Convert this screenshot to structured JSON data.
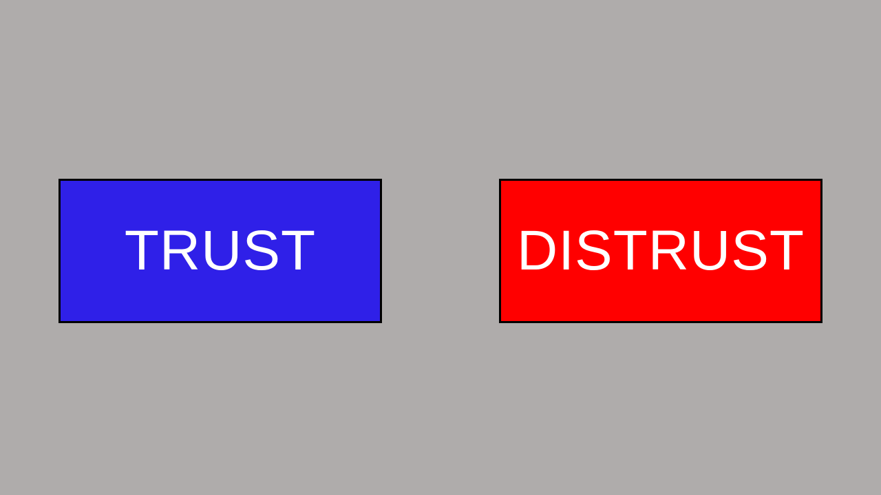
{
  "screen": {
    "background_color": "#afacab"
  },
  "choices": {
    "trust": {
      "label": "TRUST",
      "color": "#2f20e8",
      "text_color": "#ffffff"
    },
    "distrust": {
      "label": "DISTRUST",
      "color": "#ff0000",
      "text_color": "#ffffff"
    }
  }
}
